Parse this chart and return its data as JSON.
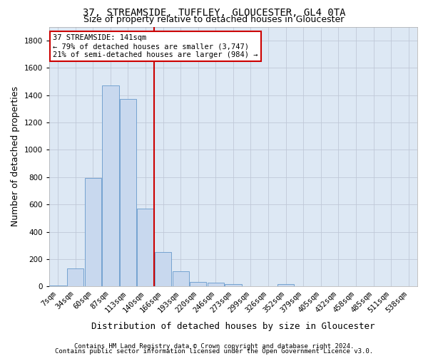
{
  "title": "37, STREAMSIDE, TUFFLEY, GLOUCESTER, GL4 0TA",
  "subtitle": "Size of property relative to detached houses in Gloucester",
  "xlabel": "Distribution of detached houses by size in Gloucester",
  "ylabel": "Number of detached properties",
  "footer_line1": "Contains HM Land Registry data © Crown copyright and database right 2024.",
  "footer_line2": "Contains public sector information licensed under the Open Government Licence v3.0.",
  "annotation_line1": "37 STREAMSIDE: 141sqm",
  "annotation_line2": "← 79% of detached houses are smaller (3,747)",
  "annotation_line3": "21% of semi-detached houses are larger (984) →",
  "bar_labels": [
    "7sqm",
    "34sqm",
    "60sqm",
    "87sqm",
    "113sqm",
    "140sqm",
    "166sqm",
    "193sqm",
    "220sqm",
    "246sqm",
    "273sqm",
    "299sqm",
    "326sqm",
    "352sqm",
    "379sqm",
    "405sqm",
    "432sqm",
    "458sqm",
    "485sqm",
    "511sqm",
    "538sqm"
  ],
  "bar_values": [
    10,
    130,
    795,
    1470,
    1370,
    570,
    250,
    110,
    35,
    30,
    20,
    0,
    0,
    20,
    0,
    0,
    0,
    0,
    0,
    0,
    0
  ],
  "bar_color": "#c8d8ee",
  "bar_edge_color": "#6699cc",
  "vline_color": "#cc0000",
  "vline_x_index": 5,
  "ylim": [
    0,
    1900
  ],
  "yticks": [
    0,
    200,
    400,
    600,
    800,
    1000,
    1200,
    1400,
    1600,
    1800
  ],
  "bg_color": "#ffffff",
  "plot_bg_color": "#dde8f4",
  "grid_color": "#c0c8d8",
  "annotation_box_color": "#cc0000",
  "title_fontsize": 10,
  "subtitle_fontsize": 9,
  "ylabel_fontsize": 9,
  "xlabel_fontsize": 9,
  "tick_fontsize": 7.5,
  "annotation_fontsize": 7.5,
  "footer_fontsize": 6.5
}
